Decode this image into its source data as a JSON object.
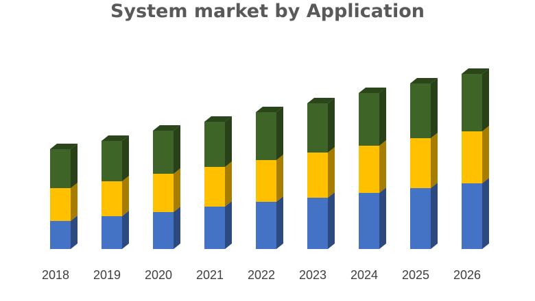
{
  "chart_data": {
    "type": "bar",
    "stacked": true,
    "three_d": true,
    "title": "System market by Application",
    "xlabel": "",
    "ylabel": "",
    "y_axis_visible": false,
    "grid": false,
    "legend": "none",
    "categories": [
      "2018",
      "2019",
      "2020",
      "2021",
      "2022",
      "2023",
      "2024",
      "2025",
      "2026"
    ],
    "series": [
      {
        "color": "#4472C4",
        "values": [
          41,
          48,
          54,
          62,
          69,
          75,
          82,
          89,
          96
        ]
      },
      {
        "color": "#FFC000",
        "values": [
          48,
          51,
          56,
          58,
          61,
          66,
          69,
          73,
          76
        ]
      },
      {
        "color": "#3F6427",
        "values": [
          57,
          59,
          63,
          66,
          70,
          72,
          77,
          80,
          84
        ]
      }
    ]
  }
}
